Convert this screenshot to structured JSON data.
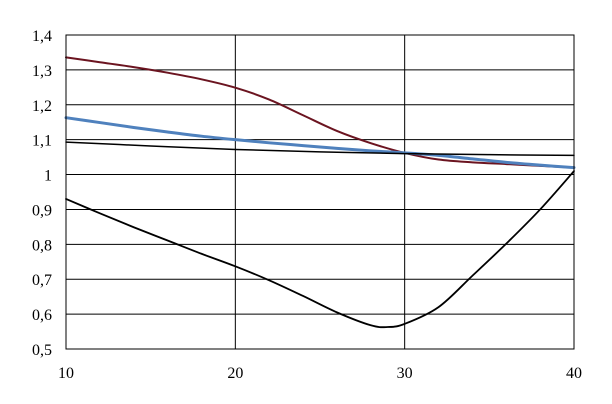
{
  "chart_data": {
    "type": "line",
    "xlim": [
      10,
      40
    ],
    "ylim": [
      0.5,
      1.4
    ],
    "x_ticks": [
      10,
      20,
      30,
      40
    ],
    "x_tick_labels": [
      "10",
      "20",
      "30",
      "40"
    ],
    "y_ticks": [
      0.5,
      0.6,
      0.7,
      0.8,
      0.9,
      1.0,
      1.1,
      1.2,
      1.3,
      1.4
    ],
    "y_tick_labels": [
      "0,5",
      "0,6",
      "0,7",
      "0,8",
      "0,9",
      "1",
      "1,1",
      "1,2",
      "1,3",
      "1,4"
    ],
    "grid": true,
    "legend": "none",
    "series": [
      {
        "color": "#6b1420",
        "points": [
          [
            10,
            1.336
          ],
          [
            12,
            1.322
          ],
          [
            14,
            1.308
          ],
          [
            16,
            1.292
          ],
          [
            18,
            1.273
          ],
          [
            20,
            1.249
          ],
          [
            22,
            1.215
          ],
          [
            24,
            1.17
          ],
          [
            26,
            1.125
          ],
          [
            28,
            1.09
          ],
          [
            30,
            1.062
          ],
          [
            32,
            1.043
          ],
          [
            34,
            1.035
          ],
          [
            36,
            1.03
          ],
          [
            38,
            1.025
          ],
          [
            40,
            1.02
          ]
        ]
      },
      {
        "color": "#4f81bd",
        "points": [
          [
            10,
            1.163
          ],
          [
            12,
            1.149
          ],
          [
            14,
            1.135
          ],
          [
            16,
            1.122
          ],
          [
            18,
            1.11
          ],
          [
            20,
            1.1
          ],
          [
            22,
            1.091
          ],
          [
            24,
            1.083
          ],
          [
            26,
            1.075
          ],
          [
            28,
            1.068
          ],
          [
            30,
            1.062
          ],
          [
            32,
            1.055
          ],
          [
            34,
            1.045
          ],
          [
            36,
            1.035
          ],
          [
            38,
            1.027
          ],
          [
            40,
            1.02
          ]
        ]
      },
      {
        "color": "#000000",
        "points": [
          [
            10,
            1.093
          ],
          [
            15,
            1.082
          ],
          [
            20,
            1.072
          ],
          [
            25,
            1.065
          ],
          [
            30,
            1.06
          ],
          [
            35,
            1.057
          ],
          [
            40,
            1.055
          ]
        ]
      },
      {
        "color": "#000000",
        "points": [
          [
            10,
            0.93
          ],
          [
            12,
            0.889
          ],
          [
            14,
            0.849
          ],
          [
            16,
            0.811
          ],
          [
            18,
            0.773
          ],
          [
            20,
            0.737
          ],
          [
            22,
            0.697
          ],
          [
            24,
            0.652
          ],
          [
            26,
            0.605
          ],
          [
            28,
            0.568
          ],
          [
            29,
            0.563
          ],
          [
            30,
            0.572
          ],
          [
            32,
            0.62
          ],
          [
            34,
            0.71
          ],
          [
            36,
            0.802
          ],
          [
            38,
            0.9
          ],
          [
            40,
            1.01
          ]
        ]
      }
    ]
  }
}
